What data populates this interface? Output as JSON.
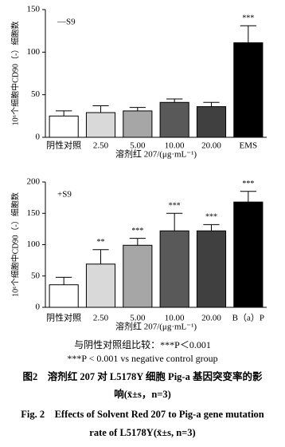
{
  "chart_data": [
    {
      "type": "bar",
      "legend": "—S9",
      "y_label": "10⁶个细胞中CD90（-）细胞数",
      "x_label": "溶剂红 207/(μg·mL⁻¹)",
      "categories": [
        "阴性对照",
        "2.50",
        "5.00",
        "10.00",
        "20.00",
        "EMS"
      ],
      "values": [
        25,
        29,
        31,
        41,
        36,
        111
      ],
      "errors": [
        6,
        8,
        4,
        4,
        5,
        20
      ],
      "annotations": [
        null,
        null,
        null,
        null,
        null,
        "***"
      ],
      "colors": [
        "#ffffff",
        "#d9d9d9",
        "#a6a6a6",
        "#595959",
        "#404040",
        "#000000"
      ],
      "ylim": [
        0,
        150
      ],
      "yticks": [
        0,
        50,
        100,
        150
      ]
    },
    {
      "type": "bar",
      "legend": "+S9",
      "y_label": "10⁶个细胞中CD90（-）细胞数",
      "x_label": "溶剂红 207/(μg·mL⁻¹)",
      "categories": [
        "阴性对照",
        "2.50",
        "5.00",
        "10.00",
        "20.00",
        "B（a）P"
      ],
      "values": [
        36,
        69,
        99,
        122,
        122,
        168
      ],
      "errors": [
        12,
        23,
        11,
        28,
        10,
        17
      ],
      "annotations": [
        null,
        "**",
        "***",
        "***",
        "***",
        "***"
      ],
      "colors": [
        "#ffffff",
        "#d9d9d9",
        "#a6a6a6",
        "#595959",
        "#404040",
        "#000000"
      ],
      "ylim": [
        0,
        200
      ],
      "yticks": [
        0,
        50,
        100,
        150,
        200
      ]
    }
  ],
  "caption": {
    "note_cn": "与阴性对照组比较：***P＜0.001",
    "note_en": "***P < 0.001 vs negative control group",
    "title_cn_1": "图2　溶剂红 207 对 L5178Y 细胞 Pig-a 基因突变率的影",
    "title_cn_2": "响(x̄±s，n=3)",
    "title_en_1": "Fig. 2　Effects of Solvent Red 207 to Pig-a gene mutation",
    "title_en_2": "rate of L5178Y(x̄±s, n=3)"
  }
}
